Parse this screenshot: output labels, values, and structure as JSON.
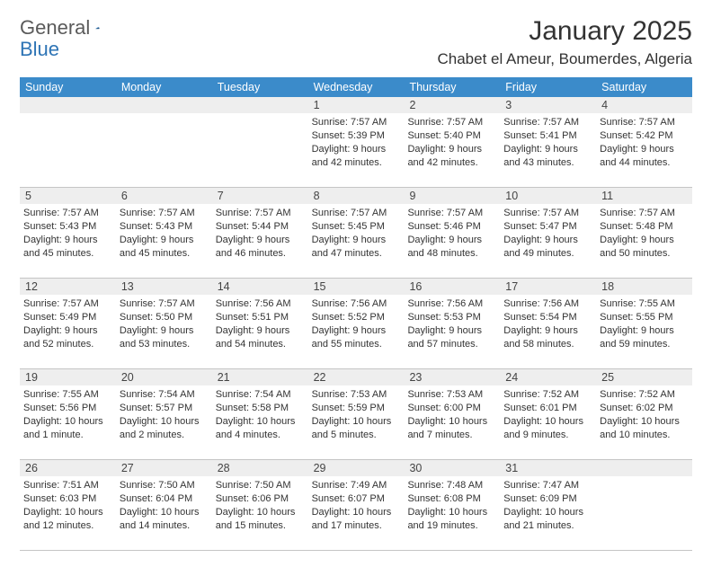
{
  "brand": {
    "part1": "General",
    "part2": "Blue"
  },
  "title": "January 2025",
  "location": "Chabet el Ameur, Boumerdes, Algeria",
  "colors": {
    "header_bg": "#3b8bca",
    "header_text": "#ffffff",
    "daynum_bg": "#eeeeee",
    "rule": "#c5c5c5",
    "page_bg": "#ffffff",
    "brand_gray": "#5a5a5a",
    "brand_blue": "#2e74b5"
  },
  "day_headers": [
    "Sunday",
    "Monday",
    "Tuesday",
    "Wednesday",
    "Thursday",
    "Friday",
    "Saturday"
  ],
  "weeks": [
    [
      {
        "day": "",
        "lines": []
      },
      {
        "day": "",
        "lines": []
      },
      {
        "day": "",
        "lines": []
      },
      {
        "day": "1",
        "lines": [
          "Sunrise: 7:57 AM",
          "Sunset: 5:39 PM",
          "Daylight: 9 hours",
          "and 42 minutes."
        ]
      },
      {
        "day": "2",
        "lines": [
          "Sunrise: 7:57 AM",
          "Sunset: 5:40 PM",
          "Daylight: 9 hours",
          "and 42 minutes."
        ]
      },
      {
        "day": "3",
        "lines": [
          "Sunrise: 7:57 AM",
          "Sunset: 5:41 PM",
          "Daylight: 9 hours",
          "and 43 minutes."
        ]
      },
      {
        "day": "4",
        "lines": [
          "Sunrise: 7:57 AM",
          "Sunset: 5:42 PM",
          "Daylight: 9 hours",
          "and 44 minutes."
        ]
      }
    ],
    [
      {
        "day": "5",
        "lines": [
          "Sunrise: 7:57 AM",
          "Sunset: 5:43 PM",
          "Daylight: 9 hours",
          "and 45 minutes."
        ]
      },
      {
        "day": "6",
        "lines": [
          "Sunrise: 7:57 AM",
          "Sunset: 5:43 PM",
          "Daylight: 9 hours",
          "and 45 minutes."
        ]
      },
      {
        "day": "7",
        "lines": [
          "Sunrise: 7:57 AM",
          "Sunset: 5:44 PM",
          "Daylight: 9 hours",
          "and 46 minutes."
        ]
      },
      {
        "day": "8",
        "lines": [
          "Sunrise: 7:57 AM",
          "Sunset: 5:45 PM",
          "Daylight: 9 hours",
          "and 47 minutes."
        ]
      },
      {
        "day": "9",
        "lines": [
          "Sunrise: 7:57 AM",
          "Sunset: 5:46 PM",
          "Daylight: 9 hours",
          "and 48 minutes."
        ]
      },
      {
        "day": "10",
        "lines": [
          "Sunrise: 7:57 AM",
          "Sunset: 5:47 PM",
          "Daylight: 9 hours",
          "and 49 minutes."
        ]
      },
      {
        "day": "11",
        "lines": [
          "Sunrise: 7:57 AM",
          "Sunset: 5:48 PM",
          "Daylight: 9 hours",
          "and 50 minutes."
        ]
      }
    ],
    [
      {
        "day": "12",
        "lines": [
          "Sunrise: 7:57 AM",
          "Sunset: 5:49 PM",
          "Daylight: 9 hours",
          "and 52 minutes."
        ]
      },
      {
        "day": "13",
        "lines": [
          "Sunrise: 7:57 AM",
          "Sunset: 5:50 PM",
          "Daylight: 9 hours",
          "and 53 minutes."
        ]
      },
      {
        "day": "14",
        "lines": [
          "Sunrise: 7:56 AM",
          "Sunset: 5:51 PM",
          "Daylight: 9 hours",
          "and 54 minutes."
        ]
      },
      {
        "day": "15",
        "lines": [
          "Sunrise: 7:56 AM",
          "Sunset: 5:52 PM",
          "Daylight: 9 hours",
          "and 55 minutes."
        ]
      },
      {
        "day": "16",
        "lines": [
          "Sunrise: 7:56 AM",
          "Sunset: 5:53 PM",
          "Daylight: 9 hours",
          "and 57 minutes."
        ]
      },
      {
        "day": "17",
        "lines": [
          "Sunrise: 7:56 AM",
          "Sunset: 5:54 PM",
          "Daylight: 9 hours",
          "and 58 minutes."
        ]
      },
      {
        "day": "18",
        "lines": [
          "Sunrise: 7:55 AM",
          "Sunset: 5:55 PM",
          "Daylight: 9 hours",
          "and 59 minutes."
        ]
      }
    ],
    [
      {
        "day": "19",
        "lines": [
          "Sunrise: 7:55 AM",
          "Sunset: 5:56 PM",
          "Daylight: 10 hours",
          "and 1 minute."
        ]
      },
      {
        "day": "20",
        "lines": [
          "Sunrise: 7:54 AM",
          "Sunset: 5:57 PM",
          "Daylight: 10 hours",
          "and 2 minutes."
        ]
      },
      {
        "day": "21",
        "lines": [
          "Sunrise: 7:54 AM",
          "Sunset: 5:58 PM",
          "Daylight: 10 hours",
          "and 4 minutes."
        ]
      },
      {
        "day": "22",
        "lines": [
          "Sunrise: 7:53 AM",
          "Sunset: 5:59 PM",
          "Daylight: 10 hours",
          "and 5 minutes."
        ]
      },
      {
        "day": "23",
        "lines": [
          "Sunrise: 7:53 AM",
          "Sunset: 6:00 PM",
          "Daylight: 10 hours",
          "and 7 minutes."
        ]
      },
      {
        "day": "24",
        "lines": [
          "Sunrise: 7:52 AM",
          "Sunset: 6:01 PM",
          "Daylight: 10 hours",
          "and 9 minutes."
        ]
      },
      {
        "day": "25",
        "lines": [
          "Sunrise: 7:52 AM",
          "Sunset: 6:02 PM",
          "Daylight: 10 hours",
          "and 10 minutes."
        ]
      }
    ],
    [
      {
        "day": "26",
        "lines": [
          "Sunrise: 7:51 AM",
          "Sunset: 6:03 PM",
          "Daylight: 10 hours",
          "and 12 minutes."
        ]
      },
      {
        "day": "27",
        "lines": [
          "Sunrise: 7:50 AM",
          "Sunset: 6:04 PM",
          "Daylight: 10 hours",
          "and 14 minutes."
        ]
      },
      {
        "day": "28",
        "lines": [
          "Sunrise: 7:50 AM",
          "Sunset: 6:06 PM",
          "Daylight: 10 hours",
          "and 15 minutes."
        ]
      },
      {
        "day": "29",
        "lines": [
          "Sunrise: 7:49 AM",
          "Sunset: 6:07 PM",
          "Daylight: 10 hours",
          "and 17 minutes."
        ]
      },
      {
        "day": "30",
        "lines": [
          "Sunrise: 7:48 AM",
          "Sunset: 6:08 PM",
          "Daylight: 10 hours",
          "and 19 minutes."
        ]
      },
      {
        "day": "31",
        "lines": [
          "Sunrise: 7:47 AM",
          "Sunset: 6:09 PM",
          "Daylight: 10 hours",
          "and 21 minutes."
        ]
      },
      {
        "day": "",
        "lines": []
      }
    ]
  ]
}
